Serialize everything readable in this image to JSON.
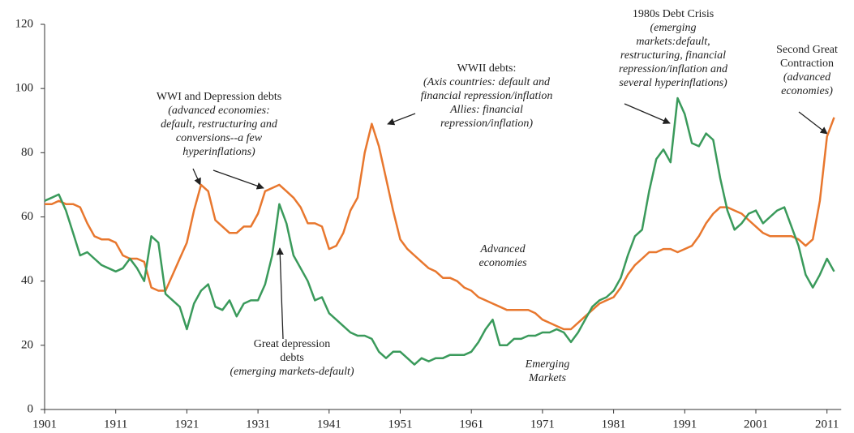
{
  "chart_data": {
    "type": "line",
    "x": [
      1901,
      1902,
      1903,
      1904,
      1905,
      1906,
      1907,
      1908,
      1909,
      1910,
      1911,
      1912,
      1913,
      1914,
      1915,
      1916,
      1917,
      1918,
      1919,
      1920,
      1921,
      1922,
      1923,
      1924,
      1925,
      1926,
      1927,
      1928,
      1929,
      1930,
      1931,
      1932,
      1933,
      1934,
      1935,
      1936,
      1937,
      1938,
      1939,
      1940,
      1941,
      1942,
      1943,
      1944,
      1945,
      1946,
      1947,
      1948,
      1949,
      1950,
      1951,
      1952,
      1953,
      1954,
      1955,
      1956,
      1957,
      1958,
      1959,
      1960,
      1961,
      1962,
      1963,
      1964,
      1965,
      1966,
      1967,
      1968,
      1969,
      1970,
      1971,
      1972,
      1973,
      1974,
      1975,
      1976,
      1977,
      1978,
      1979,
      1980,
      1981,
      1982,
      1983,
      1984,
      1985,
      1986,
      1987,
      1988,
      1989,
      1990,
      1991,
      1992,
      1993,
      1994,
      1995,
      1996,
      1997,
      1998,
      1999,
      2000,
      2001,
      2002,
      2003,
      2004,
      2005,
      2006,
      2007,
      2008,
      2009,
      2010,
      2011,
      2012
    ],
    "series": [
      {
        "color": "#e8772e",
        "values": [
          64,
          64,
          65,
          64,
          64,
          63,
          58,
          54,
          53,
          53,
          52,
          48,
          47,
          47,
          46,
          38,
          37,
          37,
          42,
          47,
          52,
          62,
          70,
          68,
          59,
          57,
          55,
          55,
          57,
          57,
          61,
          68,
          69,
          70,
          68,
          66,
          63,
          58,
          58,
          57,
          50,
          51,
          55,
          62,
          66,
          80,
          89,
          82,
          72,
          62,
          53,
          50,
          48,
          46,
          44,
          43,
          41,
          41,
          40,
          38,
          37,
          35,
          34,
          33,
          32,
          31,
          31,
          31,
          31,
          30,
          28,
          27,
          26,
          25,
          25,
          27,
          29,
          31,
          33,
          34,
          35,
          38,
          42,
          45,
          47,
          49,
          49,
          50,
          50,
          49,
          50,
          51,
          54,
          58,
          61,
          63,
          63,
          62,
          61,
          59,
          57,
          55,
          54,
          54,
          54,
          54,
          53,
          51,
          53,
          65,
          85,
          91
        ]
      },
      {
        "color": "#3a9a5b",
        "values": [
          65,
          66,
          67,
          62,
          55,
          48,
          49,
          47,
          45,
          44,
          43,
          44,
          47,
          44,
          40,
          54,
          52,
          36,
          34,
          32,
          25,
          33,
          37,
          39,
          32,
          31,
          34,
          29,
          33,
          34,
          34,
          39,
          48,
          64,
          58,
          48,
          44,
          40,
          34,
          35,
          30,
          28,
          26,
          24,
          23,
          23,
          22,
          18,
          16,
          18,
          18,
          16,
          14,
          16,
          15,
          16,
          16,
          17,
          17,
          17,
          18,
          21,
          25,
          28,
          20,
          20,
          22,
          22,
          23,
          23,
          24,
          24,
          25,
          24,
          21,
          24,
          28,
          32,
          34,
          35,
          37,
          41,
          48,
          54,
          56,
          68,
          78,
          81,
          77,
          97,
          92,
          83,
          82,
          86,
          84,
          72,
          62,
          56,
          58,
          61,
          62,
          58,
          60,
          62,
          63,
          57,
          51,
          42,
          38,
          42,
          47,
          43
        ]
      }
    ],
    "xlim": [
      1901,
      2013
    ],
    "xticks": [
      1901,
      1911,
      1921,
      1931,
      1941,
      1951,
      1961,
      1971,
      1981,
      1991,
      2001,
      2011
    ],
    "ylim": [
      0,
      120
    ],
    "yticks": [
      0,
      20,
      40,
      60,
      80,
      100,
      120
    ],
    "grid": false,
    "annotations": [
      {
        "title": [
          "WWI and Depression debts"
        ],
        "lines": [
          "(advanced economies:",
          "default, restructuring and",
          "conversions--a few",
          "hyperinflations)"
        ]
      },
      {
        "title": [
          "WWII debts:"
        ],
        "lines": [
          "(Axis countries: default and",
          "financial repression/inflation",
          "Allies: financial",
          "repression/inflation)"
        ]
      },
      {
        "title": [
          "1980s Debt Crisis"
        ],
        "lines": [
          "(emerging",
          "markets:default,",
          "restructuring, financial",
          "repression/inflation and",
          "several hyperinflations)"
        ]
      },
      {
        "title": [
          "Second Great",
          "Contraction"
        ],
        "lines": [
          "(advanced",
          "economies)"
        ]
      },
      {
        "title": [
          "Great depression",
          "debts"
        ],
        "lines": [
          "(emerging markets-default)"
        ]
      },
      {
        "title": [],
        "lines": [
          "Advanced",
          "economies"
        ]
      },
      {
        "title": [],
        "lines": [
          "Emerging",
          "Markets"
        ]
      }
    ]
  }
}
